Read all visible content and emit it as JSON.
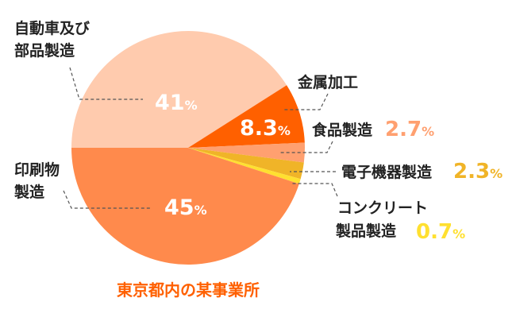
{
  "chart_data": {
    "type": "pie",
    "title": "東京都内の某事業所",
    "start": "left, clockwise",
    "slices": [
      {
        "label_lines": [
          "自動車及び",
          "部品製造"
        ],
        "value": 41,
        "value_text": "41",
        "color": "#FFCBAE"
      },
      {
        "label_lines": [
          "金属加工"
        ],
        "value": 8.3,
        "value_text": "8.3",
        "color": "#FF6000"
      },
      {
        "label_lines": [
          "食品製造"
        ],
        "value": 2.7,
        "value_text": "2.7",
        "color": "#FFA070"
      },
      {
        "label_lines": [
          "電子機器製造"
        ],
        "value": 2.3,
        "value_text": "2.3",
        "color": "#F0B428"
      },
      {
        "label_lines": [
          "コンクリート",
          "製品製造"
        ],
        "value": 0.7,
        "value_text": "0.7",
        "color": "#FFE030"
      },
      {
        "label_lines": [
          "印刷物",
          "製造"
        ],
        "value": 45,
        "value_text": "45",
        "color": "#FF8A4C"
      }
    ],
    "percent_sign": "%",
    "title_color": "#FF6000"
  }
}
